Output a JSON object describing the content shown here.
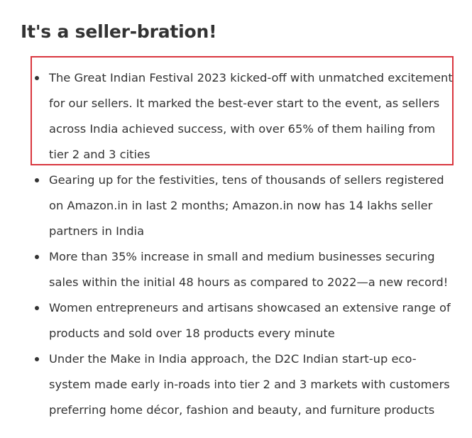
{
  "article": {
    "heading": "It's a seller-bration!",
    "bullets": [
      {
        "text": "The Great Indian Festival 2023 kicked-off with unmatched excitement for our sellers. It marked the best-ever start to the event, as sellers across India achieved success, with over 65% of them hailing from tier 2 and 3 cities"
      },
      {
        "text": "Gearing up for the festivities, tens of thousands of sellers registered on Amazon.in in last 2 months; Amazon.in now has 14 lakhs seller partners in India"
      },
      {
        "text": "More than 35% increase in small and medium businesses securing sales within the initial 48 hours as compared to 2022—a new record!"
      },
      {
        "text": "Women entrepreneurs and artisans showcased an extensive range of products and sold over 18 products every minute"
      },
      {
        "text": "Under the Make in India approach, the D2C Indian start-up eco-system made early in-roads into tier 2 and 3 markets with customers preferring home décor, fashion and beauty, and furniture products"
      }
    ]
  },
  "colors": {
    "text": "#333333",
    "highlight_border": "#d9363e",
    "background": "#ffffff"
  }
}
